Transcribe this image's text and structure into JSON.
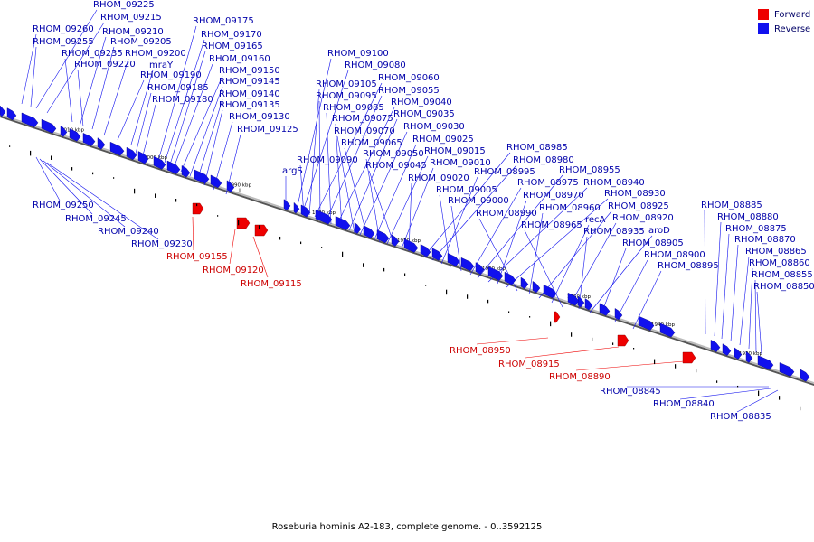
{
  "legend": {
    "forward_label": "Forward",
    "reverse_label": "Reverse"
  },
  "caption": "Roseburia hominis A2-183, complete genome. - 0..3592125",
  "colors": {
    "forward": "#ee0000",
    "reverse": "#1111ee",
    "forward_label": "#cc0000",
    "reverse_label": "#0000aa",
    "backbone": "#888888"
  },
  "scale_labels": [
    "2010 kbp",
    "2000 kbp",
    "1990 kbp",
    "1980 kbp",
    "1970 kbp",
    "1960 kbp",
    "1950 kbp",
    "1940 kbp",
    "1930 kbp"
  ],
  "genes_top": [
    "RHOM_09225",
    "RHOM_09215",
    "RHOM_09260",
    "RHOM_09210",
    "RHOM_09255",
    "RHOM_09205",
    "RHOM_09235",
    "RHOM_09200",
    "RHOM_09220",
    "mraY",
    "RHOM_09190",
    "RHOM_09185",
    "RHOM_09180",
    "RHOM_09175",
    "RHOM_09170",
    "RHOM_09165",
    "RHOM_09160",
    "RHOM_09150",
    "RHOM_09145",
    "RHOM_09140",
    "RHOM_09135",
    "RHOM_09130",
    "RHOM_09125",
    "argS",
    "RHOM_09100",
    "RHOM_09080",
    "RHOM_09105",
    "RHOM_09060",
    "RHOM_09095",
    "RHOM_09055",
    "RHOM_09085",
    "RHOM_09040",
    "RHOM_09075",
    "RHOM_09035",
    "RHOM_09070",
    "RHOM_09030",
    "RHOM_09065",
    "RHOM_09025",
    "RHOM_09050",
    "RHOM_09015",
    "RHOM_09090",
    "RHOM_09045",
    "RHOM_09010",
    "RHOM_09020",
    "RHOM_08985",
    "RHOM_08980",
    "RHOM_08995",
    "RHOM_09005",
    "RHOM_09000",
    "RHOM_08975",
    "RHOM_08955",
    "RHOM_08940",
    "RHOM_08970",
    "RHOM_08930",
    "RHOM_08990",
    "RHOM_08960",
    "RHOM_08925",
    "recA",
    "RHOM_08920",
    "RHOM_08965",
    "RHOM_08935",
    "aroD",
    "RHOM_08905",
    "RHOM_08900",
    "RHOM_08895",
    "RHOM_08885",
    "RHOM_08880",
    "RHOM_08875",
    "RHOM_08870",
    "RHOM_08865",
    "RHOM_08860",
    "RHOM_08855",
    "RHOM_08850"
  ],
  "genes_bottom_reverse": [
    "RHOM_09250",
    "RHOM_09245",
    "RHOM_09240",
    "RHOM_09230",
    "RHOM_08845",
    "RHOM_08840",
    "RHOM_08835"
  ],
  "genes_forward": [
    "RHOM_09155",
    "RHOM_09120",
    "RHOM_09115",
    "RHOM_08950",
    "RHOM_08915",
    "RHOM_08890"
  ]
}
